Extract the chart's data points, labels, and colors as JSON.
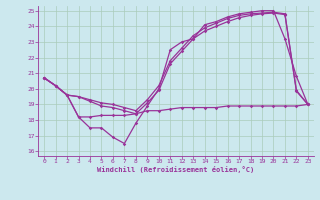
{
  "xlabel": "Windchill (Refroidissement éolien,°C)",
  "bg_color": "#cce8ee",
  "line_color": "#993399",
  "grid_color": "#aaccbb",
  "xlim": [
    -0.5,
    23.5
  ],
  "ylim": [
    15.7,
    25.3
  ],
  "xticks": [
    0,
    1,
    2,
    3,
    4,
    5,
    6,
    7,
    8,
    9,
    10,
    11,
    12,
    13,
    14,
    15,
    16,
    17,
    18,
    19,
    20,
    21,
    22,
    23
  ],
  "yticks": [
    16,
    17,
    18,
    19,
    20,
    21,
    22,
    23,
    24,
    25
  ],
  "line1_x": [
    0,
    1,
    2,
    3,
    4,
    5,
    6,
    7,
    8,
    9,
    10,
    11,
    12,
    13,
    14,
    15,
    16,
    17,
    18,
    19,
    20,
    21,
    22,
    23
  ],
  "line1_y": [
    20.7,
    20.2,
    19.6,
    18.2,
    17.5,
    17.5,
    16.9,
    16.5,
    17.8,
    18.9,
    20.0,
    22.5,
    23.0,
    23.2,
    24.1,
    24.3,
    24.6,
    24.8,
    24.9,
    25.0,
    25.0,
    23.2,
    20.8,
    19.0
  ],
  "line2_x": [
    0,
    1,
    2,
    3,
    4,
    5,
    6,
    7,
    8,
    9,
    10,
    11,
    12,
    13,
    14,
    15,
    16,
    17,
    18,
    19,
    20,
    21,
    22,
    23
  ],
  "line2_y": [
    20.7,
    20.2,
    19.6,
    18.2,
    18.2,
    18.3,
    18.3,
    18.3,
    18.4,
    18.6,
    18.6,
    18.7,
    18.8,
    18.8,
    18.8,
    18.8,
    18.9,
    18.9,
    18.9,
    18.9,
    18.9,
    18.9,
    18.9,
    19.0
  ],
  "line3_x": [
    0,
    1,
    2,
    3,
    4,
    5,
    6,
    7,
    8,
    9,
    10,
    11,
    12,
    13,
    14,
    15,
    16,
    17,
    18,
    19,
    20,
    21,
    22,
    23
  ],
  "line3_y": [
    20.7,
    20.2,
    19.6,
    19.5,
    19.3,
    19.1,
    19.0,
    18.8,
    18.6,
    19.3,
    20.2,
    21.8,
    22.6,
    23.4,
    23.9,
    24.2,
    24.5,
    24.7,
    24.8,
    24.85,
    24.9,
    24.8,
    19.9,
    19.0
  ],
  "line4_x": [
    0,
    1,
    2,
    3,
    4,
    5,
    6,
    7,
    8,
    9,
    10,
    11,
    12,
    13,
    14,
    15,
    16,
    17,
    18,
    19,
    20,
    21,
    22,
    23
  ],
  "line4_y": [
    20.7,
    20.2,
    19.6,
    19.5,
    19.2,
    18.9,
    18.8,
    18.6,
    18.4,
    19.1,
    19.9,
    21.6,
    22.4,
    23.2,
    23.7,
    24.0,
    24.3,
    24.55,
    24.7,
    24.8,
    24.85,
    24.75,
    19.85,
    19.0
  ]
}
